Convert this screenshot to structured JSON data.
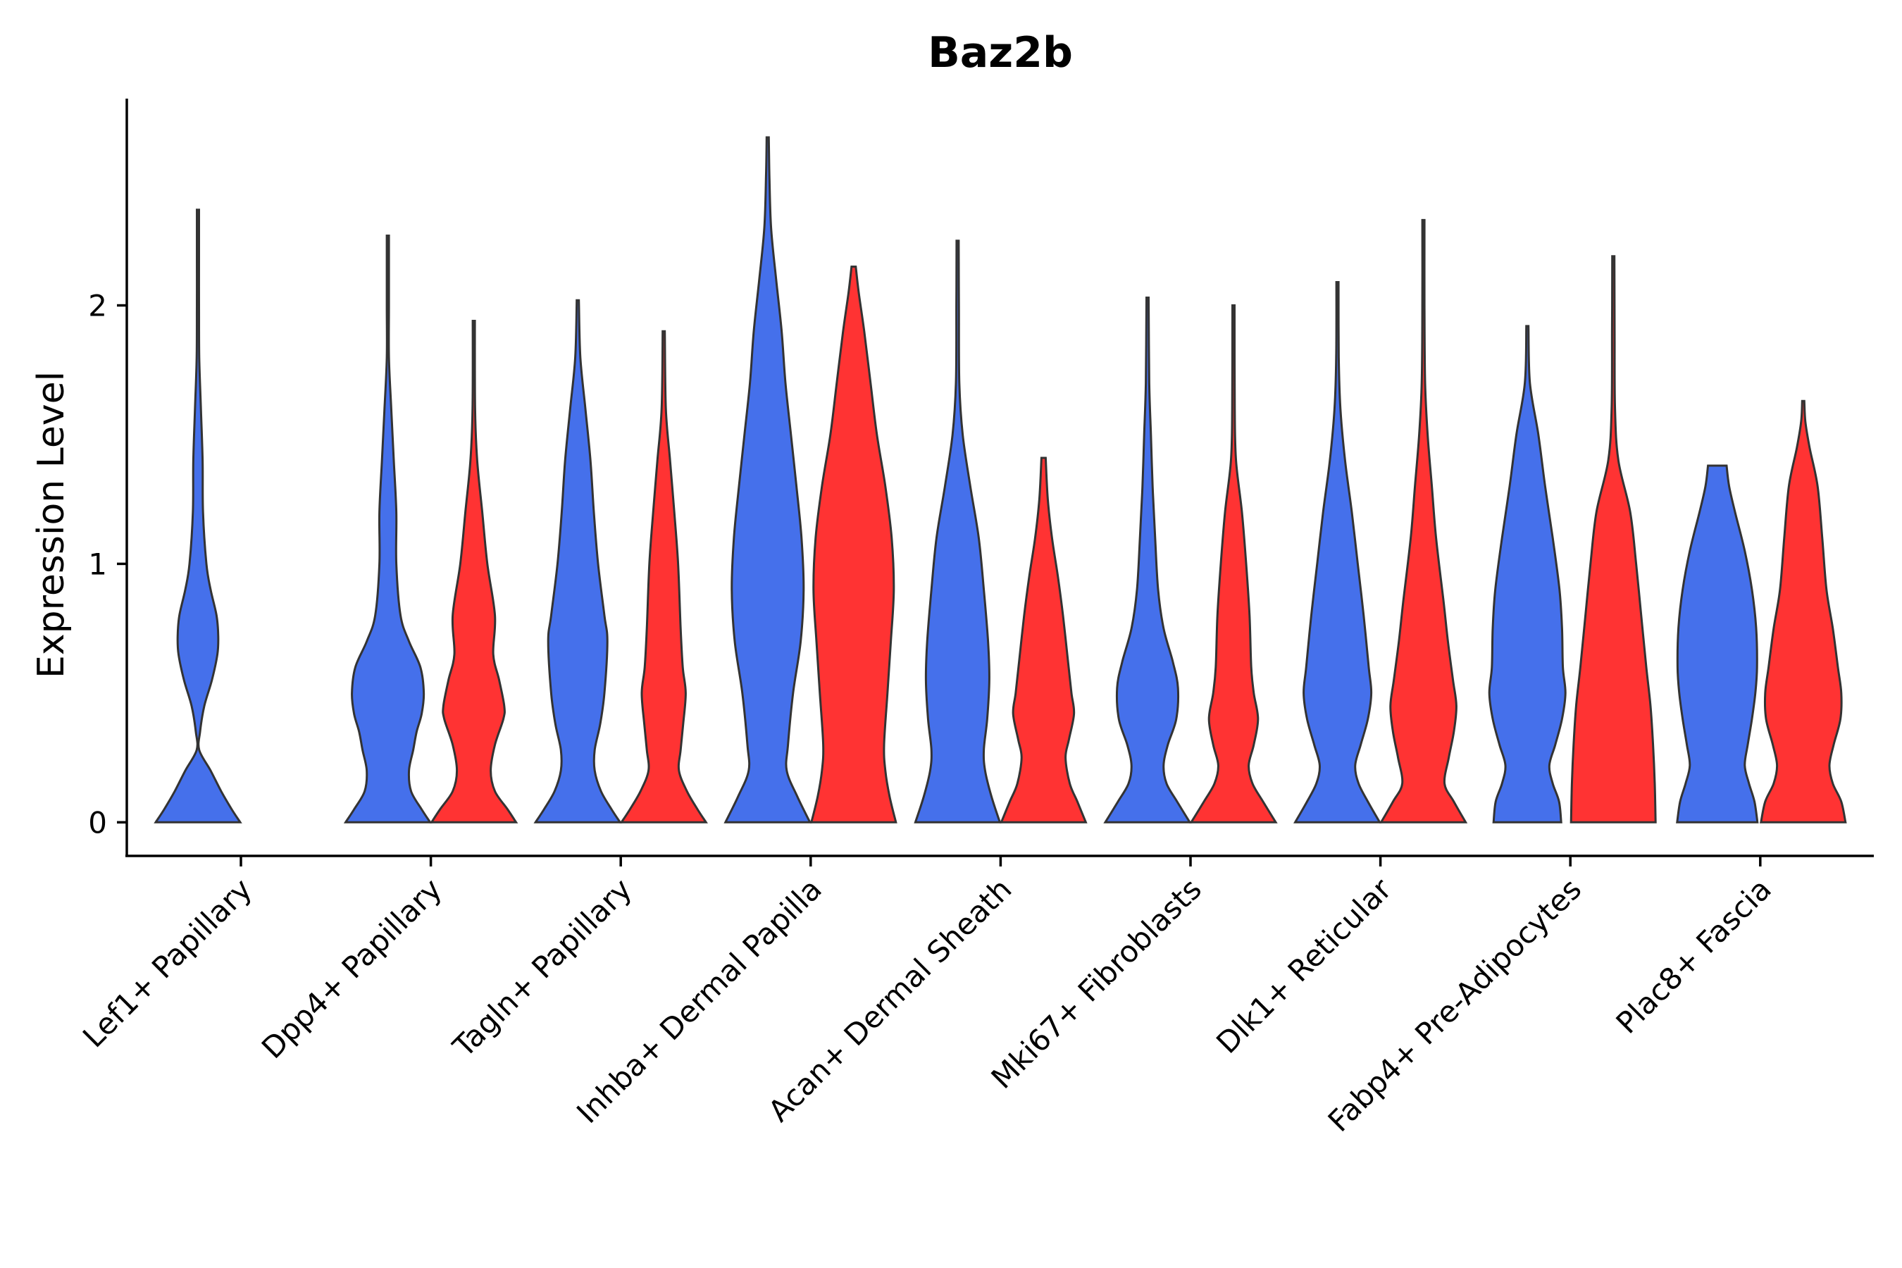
{
  "chart_data": {
    "type": "violin",
    "title": "Baz2b",
    "ylabel": "Expression Level",
    "xlabel": "",
    "ylim": [
      -0.13,
      2.8
    ],
    "yticks": [
      0,
      1,
      2
    ],
    "legend": "none",
    "grid": false,
    "colors": {
      "group_a": "#4570eb",
      "group_b": "#ff3333",
      "outline": "#333333"
    },
    "categories": [
      "Lef1+ Papillary",
      "Dpp4+ Papillary",
      "Tagln+ Papillary",
      "Inhba+ Dermal Papilla",
      "Acan+ Dermal Sheath",
      "Mki67+ Fibroblasts",
      "Dlk1+ Reticular",
      "Fabp4+ Pre-Adipocytes",
      "Plac8+ Fascia"
    ],
    "violins": [
      {
        "category": "Lef1+ Papillary",
        "group": "a",
        "max": 2.37,
        "density": [
          [
            0,
            1.0
          ],
          [
            0.05,
            0.8
          ],
          [
            0.12,
            0.55
          ],
          [
            0.2,
            0.3
          ],
          [
            0.28,
            0.03
          ],
          [
            0.35,
            0.05
          ],
          [
            0.45,
            0.15
          ],
          [
            0.55,
            0.33
          ],
          [
            0.65,
            0.46
          ],
          [
            0.72,
            0.48
          ],
          [
            0.8,
            0.44
          ],
          [
            0.9,
            0.3
          ],
          [
            1.0,
            0.2
          ],
          [
            1.2,
            0.12
          ],
          [
            1.4,
            0.11
          ],
          [
            1.6,
            0.07
          ],
          [
            1.8,
            0.03
          ],
          [
            2.0,
            0.02
          ],
          [
            2.2,
            0.01
          ],
          [
            2.37,
            0.01
          ]
        ]
      },
      {
        "category": "Dpp4+ Papillary",
        "group": "a",
        "max": 2.27,
        "density": [
          [
            0,
            1.0
          ],
          [
            0.05,
            0.8
          ],
          [
            0.12,
            0.55
          ],
          [
            0.2,
            0.5
          ],
          [
            0.28,
            0.6
          ],
          [
            0.35,
            0.68
          ],
          [
            0.42,
            0.8
          ],
          [
            0.5,
            0.85
          ],
          [
            0.6,
            0.77
          ],
          [
            0.7,
            0.5
          ],
          [
            0.8,
            0.3
          ],
          [
            1.0,
            0.2
          ],
          [
            1.2,
            0.2
          ],
          [
            1.4,
            0.14
          ],
          [
            1.6,
            0.08
          ],
          [
            1.8,
            0.02
          ],
          [
            2.0,
            0.02
          ],
          [
            2.27,
            0.01
          ]
        ]
      },
      {
        "category": "Dpp4+ Papillary",
        "group": "b",
        "max": 1.94,
        "density": [
          [
            0,
            1.0
          ],
          [
            0.05,
            0.8
          ],
          [
            0.12,
            0.5
          ],
          [
            0.2,
            0.4
          ],
          [
            0.3,
            0.5
          ],
          [
            0.4,
            0.7
          ],
          [
            0.45,
            0.72
          ],
          [
            0.55,
            0.6
          ],
          [
            0.65,
            0.46
          ],
          [
            0.8,
            0.5
          ],
          [
            1.0,
            0.32
          ],
          [
            1.2,
            0.2
          ],
          [
            1.4,
            0.08
          ],
          [
            1.6,
            0.03
          ],
          [
            1.94,
            0.01
          ]
        ]
      },
      {
        "category": "Tagln+ Papillary",
        "group": "a",
        "max": 2.02,
        "density": [
          [
            0,
            1.0
          ],
          [
            0.05,
            0.8
          ],
          [
            0.12,
            0.55
          ],
          [
            0.2,
            0.4
          ],
          [
            0.28,
            0.4
          ],
          [
            0.38,
            0.53
          ],
          [
            0.5,
            0.63
          ],
          [
            0.7,
            0.7
          ],
          [
            0.8,
            0.63
          ],
          [
            1.0,
            0.48
          ],
          [
            1.2,
            0.38
          ],
          [
            1.4,
            0.3
          ],
          [
            1.6,
            0.18
          ],
          [
            1.8,
            0.06
          ],
          [
            2.02,
            0.02
          ]
        ]
      },
      {
        "category": "Tagln+ Papillary",
        "group": "b",
        "max": 1.9,
        "density": [
          [
            0,
            1.0
          ],
          [
            0.05,
            0.8
          ],
          [
            0.12,
            0.55
          ],
          [
            0.2,
            0.36
          ],
          [
            0.28,
            0.4
          ],
          [
            0.38,
            0.46
          ],
          [
            0.5,
            0.52
          ],
          [
            0.6,
            0.45
          ],
          [
            0.75,
            0.4
          ],
          [
            1.0,
            0.34
          ],
          [
            1.2,
            0.25
          ],
          [
            1.4,
            0.15
          ],
          [
            1.6,
            0.05
          ],
          [
            1.9,
            0.02
          ]
        ]
      },
      {
        "category": "Inhba+ Dermal Papilla",
        "group": "a",
        "max": 2.65,
        "density": [
          [
            0,
            1.0
          ],
          [
            0.1,
            0.7
          ],
          [
            0.2,
            0.45
          ],
          [
            0.3,
            0.48
          ],
          [
            0.5,
            0.6
          ],
          [
            0.7,
            0.78
          ],
          [
            0.9,
            0.85
          ],
          [
            1.1,
            0.8
          ],
          [
            1.3,
            0.68
          ],
          [
            1.5,
            0.55
          ],
          [
            1.7,
            0.42
          ],
          [
            1.9,
            0.33
          ],
          [
            2.1,
            0.2
          ],
          [
            2.3,
            0.08
          ],
          [
            2.5,
            0.04
          ],
          [
            2.65,
            0.02
          ]
        ]
      },
      {
        "category": "Inhba+ Dermal Papilla",
        "group": "b",
        "max": 2.15,
        "density": [
          [
            0,
            1.0
          ],
          [
            0.1,
            0.85
          ],
          [
            0.2,
            0.75
          ],
          [
            0.3,
            0.72
          ],
          [
            0.5,
            0.8
          ],
          [
            0.7,
            0.88
          ],
          [
            0.9,
            0.95
          ],
          [
            1.1,
            0.9
          ],
          [
            1.3,
            0.75
          ],
          [
            1.5,
            0.55
          ],
          [
            1.7,
            0.4
          ],
          [
            1.9,
            0.25
          ],
          [
            2.05,
            0.12
          ],
          [
            2.15,
            0.05
          ]
        ]
      },
      {
        "category": "Acan+ Dermal Sheath",
        "group": "a",
        "max": 2.25,
        "density": [
          [
            0,
            1.0
          ],
          [
            0.1,
            0.8
          ],
          [
            0.2,
            0.65
          ],
          [
            0.28,
            0.62
          ],
          [
            0.4,
            0.7
          ],
          [
            0.55,
            0.75
          ],
          [
            0.7,
            0.72
          ],
          [
            0.9,
            0.62
          ],
          [
            1.1,
            0.5
          ],
          [
            1.3,
            0.3
          ],
          [
            1.5,
            0.12
          ],
          [
            1.7,
            0.04
          ],
          [
            2.0,
            0.03
          ],
          [
            2.25,
            0.02
          ]
        ]
      },
      {
        "category": "Acan+ Dermal Sheath",
        "group": "b",
        "max": 1.41,
        "density": [
          [
            0,
            1.0
          ],
          [
            0.08,
            0.8
          ],
          [
            0.15,
            0.62
          ],
          [
            0.25,
            0.52
          ],
          [
            0.32,
            0.6
          ],
          [
            0.42,
            0.72
          ],
          [
            0.5,
            0.66
          ],
          [
            0.62,
            0.58
          ],
          [
            0.8,
            0.46
          ],
          [
            0.95,
            0.34
          ],
          [
            1.1,
            0.2
          ],
          [
            1.25,
            0.1
          ],
          [
            1.41,
            0.05
          ]
        ]
      },
      {
        "category": "Mki67+ Fibroblasts",
        "group": "a",
        "max": 2.03,
        "density": [
          [
            0,
            1.0
          ],
          [
            0.08,
            0.7
          ],
          [
            0.15,
            0.45
          ],
          [
            0.22,
            0.38
          ],
          [
            0.3,
            0.48
          ],
          [
            0.4,
            0.68
          ],
          [
            0.52,
            0.72
          ],
          [
            0.62,
            0.6
          ],
          [
            0.75,
            0.38
          ],
          [
            0.9,
            0.25
          ],
          [
            1.1,
            0.18
          ],
          [
            1.3,
            0.12
          ],
          [
            1.5,
            0.08
          ],
          [
            1.7,
            0.04
          ],
          [
            2.03,
            0.01
          ]
        ]
      },
      {
        "category": "Mki67+ Fibroblasts",
        "group": "b",
        "max": 2.0,
        "density": [
          [
            0,
            1.0
          ],
          [
            0.08,
            0.7
          ],
          [
            0.15,
            0.45
          ],
          [
            0.22,
            0.36
          ],
          [
            0.3,
            0.48
          ],
          [
            0.4,
            0.58
          ],
          [
            0.5,
            0.48
          ],
          [
            0.6,
            0.42
          ],
          [
            0.8,
            0.38
          ],
          [
            1.0,
            0.3
          ],
          [
            1.2,
            0.2
          ],
          [
            1.4,
            0.06
          ],
          [
            1.6,
            0.03
          ],
          [
            2.0,
            0.01
          ]
        ]
      },
      {
        "category": "Dlk1+ Reticular",
        "group": "a",
        "max": 2.09,
        "density": [
          [
            0,
            1.0
          ],
          [
            0.08,
            0.72
          ],
          [
            0.15,
            0.5
          ],
          [
            0.22,
            0.42
          ],
          [
            0.3,
            0.55
          ],
          [
            0.4,
            0.72
          ],
          [
            0.5,
            0.8
          ],
          [
            0.6,
            0.74
          ],
          [
            0.8,
            0.62
          ],
          [
            1.0,
            0.48
          ],
          [
            1.2,
            0.34
          ],
          [
            1.4,
            0.18
          ],
          [
            1.6,
            0.07
          ],
          [
            1.8,
            0.03
          ],
          [
            2.09,
            0.01
          ]
        ]
      },
      {
        "category": "Dlk1+ Reticular",
        "group": "b",
        "max": 2.33,
        "density": [
          [
            0,
            1.0
          ],
          [
            0.08,
            0.72
          ],
          [
            0.15,
            0.5
          ],
          [
            0.25,
            0.6
          ],
          [
            0.35,
            0.72
          ],
          [
            0.45,
            0.78
          ],
          [
            0.55,
            0.7
          ],
          [
            0.7,
            0.58
          ],
          [
            0.85,
            0.48
          ],
          [
            1.1,
            0.3
          ],
          [
            1.3,
            0.2
          ],
          [
            1.5,
            0.1
          ],
          [
            1.7,
            0.04
          ],
          [
            2.0,
            0.02
          ],
          [
            2.33,
            0.01
          ]
        ]
      },
      {
        "category": "Fabp4+ Pre-Adipocytes",
        "group": "a",
        "max": 1.92,
        "density": [
          [
            0,
            0.8
          ],
          [
            0.08,
            0.75
          ],
          [
            0.15,
            0.6
          ],
          [
            0.22,
            0.52
          ],
          [
            0.3,
            0.66
          ],
          [
            0.4,
            0.82
          ],
          [
            0.5,
            0.9
          ],
          [
            0.6,
            0.84
          ],
          [
            0.75,
            0.82
          ],
          [
            0.9,
            0.76
          ],
          [
            1.1,
            0.6
          ],
          [
            1.3,
            0.42
          ],
          [
            1.5,
            0.26
          ],
          [
            1.7,
            0.06
          ],
          [
            1.92,
            0.01
          ]
        ]
      },
      {
        "category": "Fabp4+ Pre-Adipocytes",
        "group": "b",
        "max": 2.19,
        "density": [
          [
            0,
            1.0
          ],
          [
            0.15,
            0.98
          ],
          [
            0.3,
            0.94
          ],
          [
            0.45,
            0.88
          ],
          [
            0.6,
            0.78
          ],
          [
            0.8,
            0.66
          ],
          [
            1.0,
            0.54
          ],
          [
            1.2,
            0.4
          ],
          [
            1.4,
            0.12
          ],
          [
            1.6,
            0.04
          ],
          [
            1.9,
            0.03
          ],
          [
            2.19,
            0.02
          ]
        ]
      },
      {
        "category": "Plac8+ Fascia",
        "group": "a",
        "max": 1.38,
        "density": [
          [
            0,
            0.95
          ],
          [
            0.08,
            0.88
          ],
          [
            0.15,
            0.75
          ],
          [
            0.22,
            0.65
          ],
          [
            0.3,
            0.72
          ],
          [
            0.4,
            0.82
          ],
          [
            0.5,
            0.9
          ],
          [
            0.6,
            0.94
          ],
          [
            0.75,
            0.92
          ],
          [
            0.9,
            0.82
          ],
          [
            1.05,
            0.65
          ],
          [
            1.2,
            0.42
          ],
          [
            1.3,
            0.28
          ],
          [
            1.38,
            0.22
          ]
        ]
      },
      {
        "category": "Plac8+ Fascia",
        "group": "b",
        "max": 1.63,
        "density": [
          [
            0,
            1.0
          ],
          [
            0.08,
            0.9
          ],
          [
            0.15,
            0.7
          ],
          [
            0.22,
            0.62
          ],
          [
            0.3,
            0.72
          ],
          [
            0.4,
            0.88
          ],
          [
            0.5,
            0.9
          ],
          [
            0.6,
            0.82
          ],
          [
            0.75,
            0.7
          ],
          [
            0.9,
            0.55
          ],
          [
            1.1,
            0.45
          ],
          [
            1.3,
            0.34
          ],
          [
            1.45,
            0.15
          ],
          [
            1.55,
            0.05
          ],
          [
            1.63,
            0.02
          ]
        ]
      }
    ]
  }
}
